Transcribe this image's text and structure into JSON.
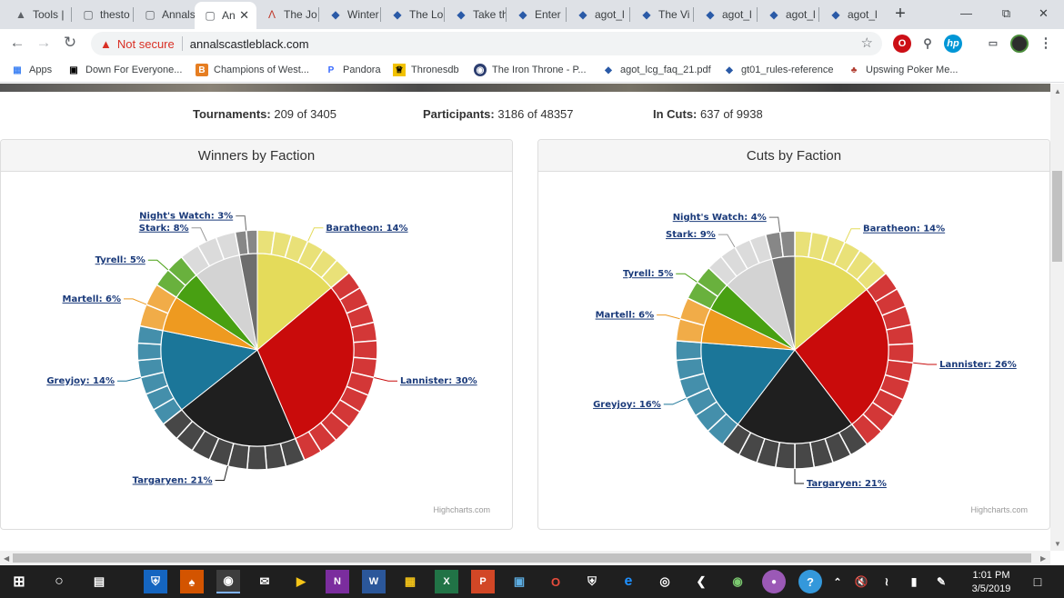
{
  "tabs": [
    {
      "label": "Tools |",
      "icon": "cap-icon"
    },
    {
      "label": "thesto",
      "icon": "doc-icon"
    },
    {
      "label": "Annals",
      "icon": "doc-icon"
    },
    {
      "label": "An",
      "icon": "doc-icon"
    },
    {
      "label": "The Jo",
      "icon": "tower-icon"
    },
    {
      "label": "Winter",
      "icon": "diamond-icon"
    },
    {
      "label": "The Lo",
      "icon": "diamond-icon"
    },
    {
      "label": "Take th",
      "icon": "diamond-icon"
    },
    {
      "label": "Enter",
      "icon": "diamond-icon"
    },
    {
      "label": "agot_l",
      "icon": "diamond-icon"
    },
    {
      "label": "The Vi",
      "icon": "diamond-icon"
    },
    {
      "label": "agot_l",
      "icon": "diamond-icon"
    },
    {
      "label": "agot_l",
      "icon": "diamond-icon"
    },
    {
      "label": "agot_l",
      "icon": "diamond-icon"
    }
  ],
  "address": {
    "warning": "Not secure",
    "url": "annalscastleblack.com"
  },
  "bookmarks": [
    {
      "label": "Apps"
    },
    {
      "label": "Down For Everyone..."
    },
    {
      "label": "Champions of West..."
    },
    {
      "label": "Pandora"
    },
    {
      "label": "Thronesdb"
    },
    {
      "label": "The Iron Throne - P..."
    },
    {
      "label": "agot_lcg_faq_21.pdf"
    },
    {
      "label": "gt01_rules-reference"
    },
    {
      "label": "Upswing Poker Me..."
    }
  ],
  "stats": {
    "tournaments_label": "Tournaments:",
    "tournaments_value": "209 of 3405",
    "participants_label": "Participants:",
    "participants_value": "3186 of 48357",
    "cuts_label": "In Cuts:",
    "cuts_value": "637 of 9938"
  },
  "credits": "Highcharts.com",
  "chart_data": [
    {
      "type": "pie",
      "title": "Winners by Faction",
      "slices": [
        {
          "name": "Baratheon",
          "value": 14,
          "label": "Baratheon: 14%",
          "color": "#e4db5a"
        },
        {
          "name": "Lannister",
          "value": 30,
          "label": "Lannister: 30%",
          "color": "#c90b0b"
        },
        {
          "name": "Targaryen",
          "value": 21,
          "label": "Targaryen: 21%",
          "color": "#1f1f1f"
        },
        {
          "name": "Greyjoy",
          "value": 14,
          "label": "Greyjoy: 14%",
          "color": "#1b7699"
        },
        {
          "name": "Martell",
          "value": 6,
          "label": "Martell: 6%",
          "color": "#ee9a20"
        },
        {
          "name": "Tyrell",
          "value": 5,
          "label": "Tyrell: 5%",
          "color": "#48a012"
        },
        {
          "name": "Stark",
          "value": 8,
          "label": "Stark: 8%",
          "color": "#d3d3d3"
        },
        {
          "name": "Night's Watch",
          "value": 3,
          "label": "Night's Watch: 3%",
          "color": "#6d6d6d"
        }
      ]
    },
    {
      "type": "pie",
      "title": "Cuts by Faction",
      "slices": [
        {
          "name": "Baratheon",
          "value": 14,
          "label": "Baratheon: 14%",
          "color": "#e4db5a"
        },
        {
          "name": "Lannister",
          "value": 26,
          "label": "Lannister: 26%",
          "color": "#c90b0b"
        },
        {
          "name": "Targaryen",
          "value": 21,
          "label": "Targaryen: 21%",
          "color": "#1f1f1f"
        },
        {
          "name": "Greyjoy",
          "value": 16,
          "label": "Greyjoy: 16%",
          "color": "#1b7699"
        },
        {
          "name": "Martell",
          "value": 6,
          "label": "Martell: 6%",
          "color": "#ee9a20"
        },
        {
          "name": "Tyrell",
          "value": 5,
          "label": "Tyrell: 5%",
          "color": "#48a012"
        },
        {
          "name": "Stark",
          "value": 9,
          "label": "Stark: 9%",
          "color": "#d3d3d3"
        },
        {
          "name": "Night's Watch",
          "value": 4,
          "label": "Night's Watch: 4%",
          "color": "#6d6d6d"
        }
      ]
    }
  ],
  "clock": {
    "time": "1:01 PM",
    "date": "3/5/2019"
  }
}
